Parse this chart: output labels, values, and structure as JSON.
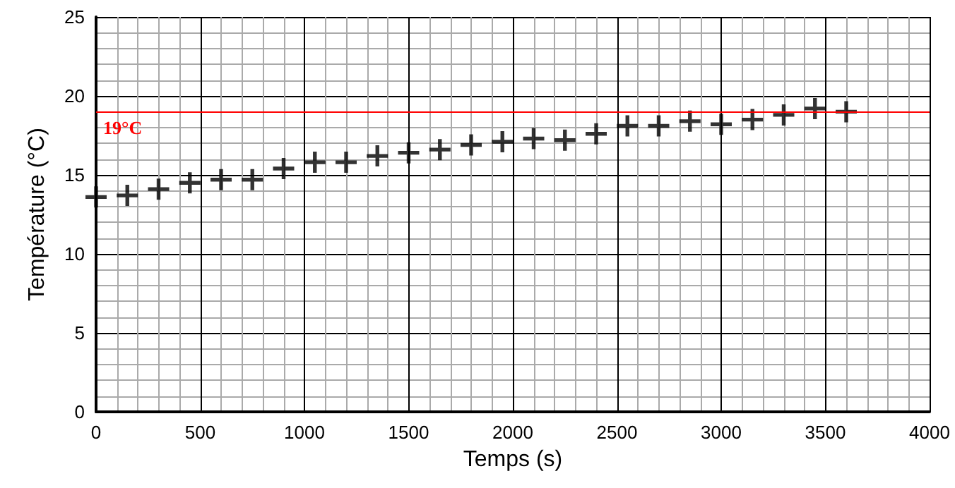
{
  "chart_data": {
    "type": "scatter",
    "xlabel": "Temps (s)",
    "ylabel": "Température (°C)",
    "x": [
      0,
      150,
      300,
      450,
      600,
      750,
      900,
      1050,
      1200,
      1350,
      1500,
      1650,
      1800,
      1950,
      2100,
      2250,
      2400,
      2550,
      2700,
      2850,
      3000,
      3150,
      3300,
      3450,
      3600
    ],
    "series": [
      {
        "color": "#000000",
        "values": [
          13.6,
          13.7,
          14.1,
          14.5,
          14.7,
          14.7,
          15.4,
          15.8,
          15.8,
          16.2,
          16.4,
          16.6,
          16.9,
          17.1,
          17.3,
          17.2,
          17.6,
          18.1,
          18.1,
          18.4,
          18.2,
          18.5,
          18.8,
          19.2,
          19.0
        ]
      }
    ],
    "xlim": [
      0,
      4000
    ],
    "xticks": [
      0,
      500,
      1000,
      1500,
      2000,
      2500,
      3000,
      3500,
      4000
    ],
    "ylim": [
      0,
      25
    ],
    "yticks": [
      0,
      5,
      10,
      15,
      20,
      25
    ],
    "grid": true,
    "marker": "cross",
    "ref_lines": [
      {
        "axis": "y",
        "value": 19,
        "label": "19°C",
        "color": "#ff0000"
      }
    ]
  }
}
